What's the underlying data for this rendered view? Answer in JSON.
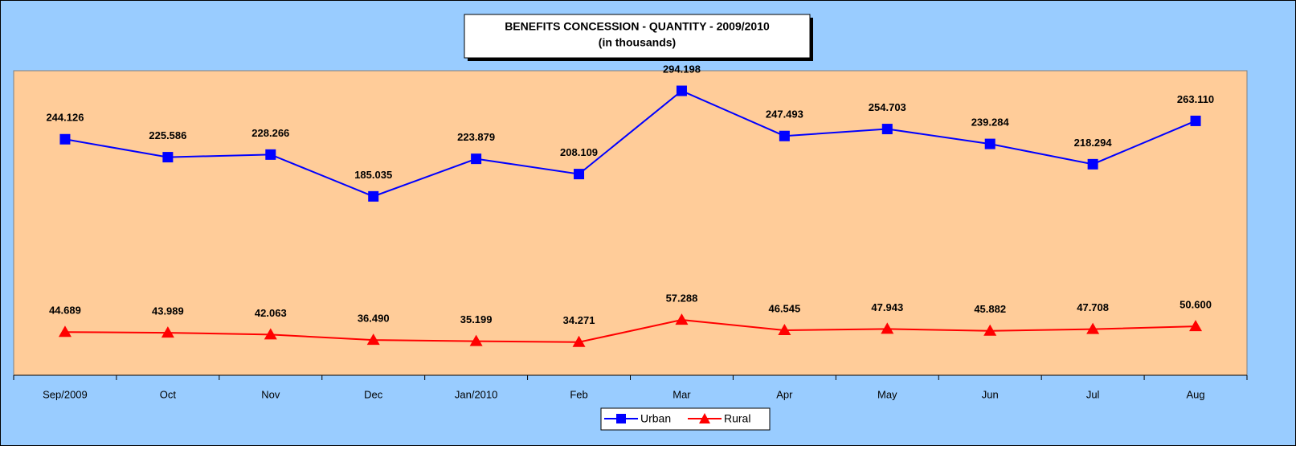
{
  "chart_data": {
    "type": "line",
    "title": "BENEFITS CONCESSION - QUANTITY - 2009/2010",
    "subtitle": "(in thousands)",
    "categories": [
      "Sep/2009",
      "Oct",
      "Nov",
      "Dec",
      "Jan/2010",
      "Feb",
      "Mar",
      "Apr",
      "May",
      "Jun",
      "Jul",
      "Aug"
    ],
    "series": [
      {
        "name": "Urban",
        "color": "#0000ff",
        "marker": "square",
        "values": [
          244.126,
          225.586,
          228.266,
          185.035,
          223.879,
          208.109,
          294.198,
          247.493,
          254.703,
          239.284,
          218.294,
          263.11
        ],
        "value_labels": [
          "244.126",
          "225.586",
          "228.266",
          "185.035",
          "223.879",
          "208.109",
          "294.198",
          "247.493",
          "254.703",
          "239.284",
          "218.294",
          "263.110"
        ]
      },
      {
        "name": "Rural",
        "color": "#ff0000",
        "marker": "triangle",
        "values": [
          44.689,
          43.989,
          42.063,
          36.49,
          35.199,
          34.271,
          57.288,
          46.545,
          47.943,
          45.882,
          47.708,
          50.6
        ],
        "value_labels": [
          "44.689",
          "43.989",
          "42.063",
          "36.490",
          "35.199",
          "34.271",
          "57.288",
          "46.545",
          "47.943",
          "45.882",
          "47.708",
          "50.600"
        ]
      }
    ],
    "ylim": [
      0,
      315
    ],
    "legend": "bottom"
  }
}
